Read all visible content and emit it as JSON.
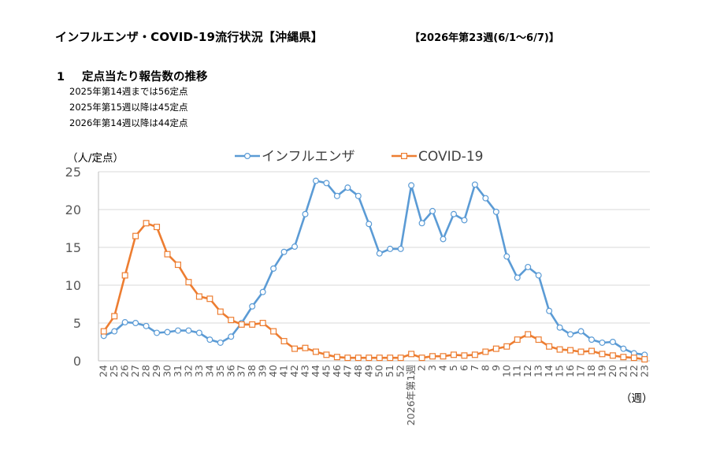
{
  "header": {
    "title": "インフルエンザ・COVID-19流行状況【沖縄県】",
    "week": "【2026年第23週(6/1～6/7)】"
  },
  "section": {
    "number": "1",
    "heading": "定点当たり報告数の推移",
    "notes": [
      "2025年第14週までは56定点",
      "2025年第15週以降は45定点",
      "2026年第14週以降は44定点"
    ]
  },
  "colors": {
    "influenza": "#5b9bd5",
    "covid": "#ed7d31",
    "grid": "#d9d9d9",
    "axis": "#bfbfbf"
  },
  "chart_data": {
    "type": "line",
    "ylabel": "（人/定点）",
    "xlabel": "（週）",
    "ylim": [
      0,
      25
    ],
    "yticks": [
      0,
      5,
      10,
      15,
      20,
      25
    ],
    "legend_position": "top",
    "grid": "horizontal",
    "categories": [
      "24",
      "25",
      "26",
      "27",
      "28",
      "29",
      "30",
      "31",
      "32",
      "33",
      "34",
      "35",
      "36",
      "37",
      "38",
      "39",
      "40",
      "41",
      "42",
      "43",
      "44",
      "45",
      "46",
      "47",
      "48",
      "49",
      "50",
      "51",
      "52",
      "2026年第1週",
      "2",
      "3",
      "4",
      "5",
      "6",
      "7",
      "8",
      "9",
      "10",
      "11",
      "12",
      "13",
      "14",
      "15",
      "16",
      "17",
      "18",
      "19",
      "20",
      "21",
      "22",
      "23"
    ],
    "series": [
      {
        "name": "インフルエンザ",
        "marker": "circle",
        "values": [
          3.3,
          3.9,
          5.1,
          5.0,
          4.6,
          3.7,
          3.8,
          4.0,
          4.0,
          3.7,
          2.8,
          2.4,
          3.2,
          5.0,
          7.2,
          9.1,
          12.2,
          14.4,
          15.1,
          19.4,
          23.8,
          23.5,
          21.8,
          22.9,
          21.8,
          18.1,
          14.2,
          14.8,
          14.8,
          23.2,
          18.2,
          19.8,
          16.1,
          19.4,
          18.6,
          23.3,
          21.5,
          19.7,
          13.8,
          11.0,
          12.4,
          11.3,
          6.6,
          4.4,
          3.5,
          3.9,
          2.8,
          2.4,
          2.5,
          1.6,
          1.0,
          0.8
        ]
      },
      {
        "name": "COVID-19",
        "marker": "square",
        "values": [
          3.9,
          5.9,
          11.3,
          16.5,
          18.2,
          17.7,
          14.1,
          12.7,
          10.4,
          8.5,
          8.2,
          6.5,
          5.4,
          4.8,
          4.8,
          5.0,
          3.9,
          2.6,
          1.6,
          1.7,
          1.2,
          0.8,
          0.5,
          0.4,
          0.4,
          0.4,
          0.4,
          0.4,
          0.4,
          0.9,
          0.4,
          0.6,
          0.6,
          0.8,
          0.7,
          0.8,
          1.2,
          1.6,
          1.9,
          2.8,
          3.5,
          2.8,
          1.9,
          1.5,
          1.4,
          1.2,
          1.3,
          0.9,
          0.7,
          0.5,
          0.4,
          0.2
        ]
      }
    ]
  }
}
